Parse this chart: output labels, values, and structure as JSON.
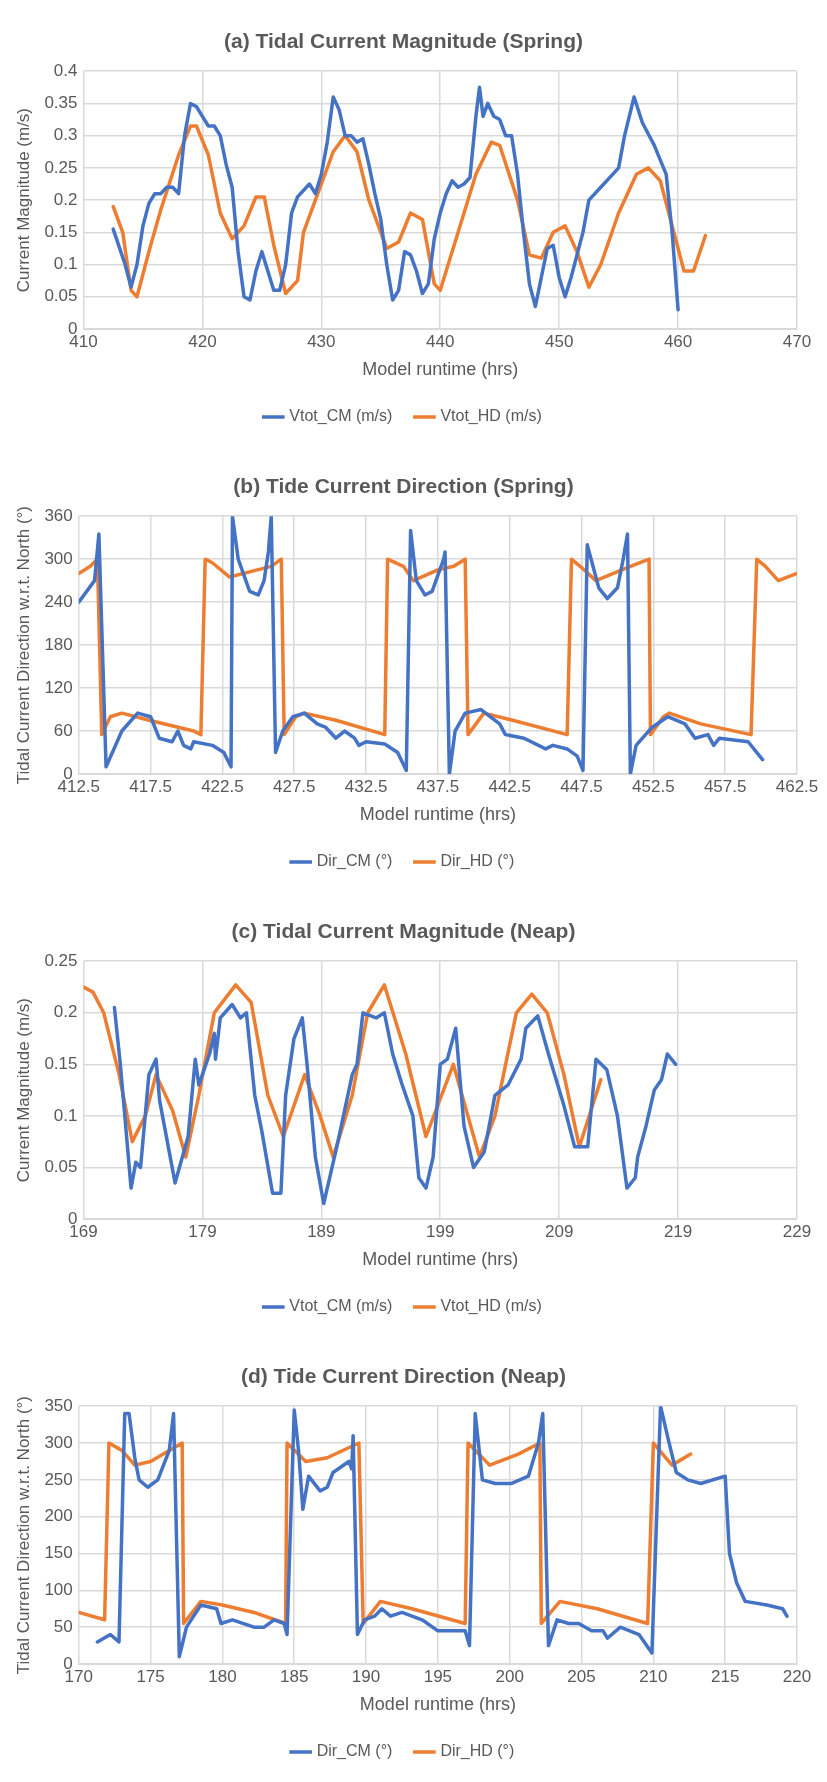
{
  "chart_data": [
    {
      "type": "line",
      "title": "(a) Tidal Current Magnitude (Spring)",
      "xlabel": "Model runtime (hrs)",
      "ylabel": "Current Magnitude (m/s)",
      "xlim": [
        410,
        470
      ],
      "xticks": [
        410,
        420,
        430,
        440,
        450,
        460,
        470
      ],
      "ylim": [
        0,
        0.4
      ],
      "yticks": [
        0,
        0.05,
        0.1,
        0.15,
        0.2,
        0.25,
        0.3,
        0.35,
        0.4
      ],
      "grid": true,
      "legend": "bottom",
      "series": [
        {
          "name": "Vtot_CM (m/s)",
          "color": "#4472c4",
          "x": [
            412.5,
            413.5,
            414,
            414.5,
            415,
            415.5,
            416,
            416.5,
            417,
            417.5,
            418,
            418.5,
            419,
            419.5,
            420,
            420.5,
            421,
            421.5,
            422,
            422.5,
            423,
            423.5,
            424,
            424.5,
            425,
            425.5,
            426,
            426.5,
            427,
            427.5,
            428,
            429,
            429.5,
            430,
            430.5,
            431,
            431.5,
            432,
            432.5,
            433,
            433.5,
            434,
            434.5,
            435,
            435.5,
            436,
            436.5,
            437,
            437.5,
            438,
            438.5,
            439,
            439.5,
            440,
            440.5,
            441,
            441.5,
            442,
            442.5,
            443,
            443.3,
            443.6,
            444,
            444.5,
            445,
            445.5,
            446,
            446.5,
            447,
            447.5,
            448,
            448.5,
            449,
            449.5,
            450,
            450.5,
            451,
            452,
            452.5,
            453.5,
            454.5,
            455,
            455.5,
            456.3,
            457,
            458,
            459,
            459.5,
            460
          ],
          "values": [
            0.155,
            0.1,
            0.065,
            0.1,
            0.16,
            0.195,
            0.21,
            0.21,
            0.22,
            0.22,
            0.21,
            0.3,
            0.35,
            0.345,
            0.33,
            0.315,
            0.315,
            0.3,
            0.255,
            0.22,
            0.12,
            0.05,
            0.045,
            0.09,
            0.12,
            0.09,
            0.06,
            0.06,
            0.1,
            0.18,
            0.205,
            0.225,
            0.21,
            0.24,
            0.29,
            0.36,
            0.34,
            0.3,
            0.3,
            0.29,
            0.295,
            0.255,
            0.21,
            0.17,
            0.1,
            0.045,
            0.06,
            0.12,
            0.115,
            0.09,
            0.055,
            0.07,
            0.14,
            0.18,
            0.21,
            0.23,
            0.22,
            0.225,
            0.235,
            0.33,
            0.375,
            0.33,
            0.35,
            0.33,
            0.325,
            0.3,
            0.3,
            0.24,
            0.15,
            0.07,
            0.035,
            0.08,
            0.125,
            0.13,
            0.08,
            0.05,
            0.08,
            0.15,
            0.2,
            0.22,
            0.24,
            0.25,
            0.3,
            0.36,
            0.32,
            0.285,
            0.24,
            0.15,
            0.03
          ]
        },
        {
          "name": "Vtot_HD (m/s)",
          "color": "#ed7d31",
          "x": [
            412.5,
            413.3,
            414,
            414.5,
            415.5,
            416.5,
            418,
            419,
            419.5,
            420.5,
            421.5,
            422.5,
            423.5,
            424.5,
            425.2,
            426,
            427,
            428,
            428.5,
            429.5,
            431,
            432,
            433,
            434,
            435.5,
            436.5,
            437.5,
            438.5,
            439.5,
            440,
            441,
            442,
            443,
            444.3,
            445,
            446.5,
            447.5,
            448.5,
            449.5,
            450.5,
            451.5,
            452.5,
            453.5,
            455,
            456.5,
            457.5,
            458.5,
            459.5,
            460.5,
            461.3,
            462.3
          ],
          "values": [
            0.19,
            0.15,
            0.06,
            0.05,
            0.12,
            0.185,
            0.27,
            0.315,
            0.315,
            0.27,
            0.18,
            0.14,
            0.16,
            0.205,
            0.205,
            0.13,
            0.055,
            0.075,
            0.15,
            0.2,
            0.275,
            0.3,
            0.275,
            0.2,
            0.125,
            0.135,
            0.18,
            0.17,
            0.07,
            0.06,
            0.12,
            0.18,
            0.24,
            0.29,
            0.285,
            0.2,
            0.115,
            0.11,
            0.15,
            0.16,
            0.12,
            0.065,
            0.1,
            0.18,
            0.24,
            0.25,
            0.23,
            0.16,
            0.09,
            0.09,
            0.145
          ]
        }
      ]
    },
    {
      "type": "line",
      "title": "(b) Tide Current Direction (Spring)",
      "xlabel": "Model runtime (hrs)",
      "ylabel": "Tidal Current Direction w.r.t. North (°)",
      "xlim": [
        412.5,
        462.5
      ],
      "xticks": [
        412.5,
        417.5,
        422.5,
        427.5,
        432.5,
        437.5,
        442.5,
        447.5,
        452.5,
        457.5,
        462.5
      ],
      "ylim": [
        0,
        360
      ],
      "yticks": [
        0,
        60,
        120,
        180,
        240,
        300,
        360
      ],
      "grid": true,
      "legend": "bottom",
      "series": [
        {
          "name": "Dir_CM (°)",
          "color": "#4472c4",
          "x": [
            412.5,
            413.6,
            413.9,
            414.4,
            415.5,
            416.6,
            417.5,
            418.1,
            419,
            419.4,
            419.8,
            420.3,
            420.5,
            421.8,
            422.6,
            423.1,
            423.2,
            423.6,
            424.4,
            425,
            425.4,
            425.7,
            425.9,
            426.2,
            426.7,
            427.4,
            428.2,
            429.1,
            429.7,
            430.4,
            431,
            431.7,
            432,
            432.5,
            433.8,
            434.7,
            435.3,
            435.6,
            436,
            436.6,
            437.1,
            437.9,
            438,
            438.3,
            438.7,
            439.4,
            440.5,
            441.8,
            442.2,
            443.5,
            445,
            445.5,
            446.5,
            447.2,
            447.6,
            447.9,
            448.7,
            449.3,
            450,
            450.4,
            450.7,
            450.9,
            451.3,
            452.4,
            453.5,
            454.7,
            455.4,
            456.3,
            456.7,
            457.1,
            459.1,
            460.1
          ],
          "values": [
            240,
            270,
            335,
            10,
            60,
            85,
            80,
            50,
            45,
            60,
            40,
            35,
            45,
            40,
            30,
            10,
            360,
            300,
            255,
            250,
            270,
            310,
            360,
            30,
            60,
            80,
            85,
            70,
            65,
            50,
            60,
            50,
            40,
            45,
            42,
            30,
            5,
            340,
            270,
            250,
            255,
            300,
            310,
            0,
            60,
            85,
            90,
            70,
            55,
            50,
            35,
            40,
            35,
            25,
            5,
            320,
            260,
            245,
            260,
            300,
            335,
            0,
            40,
            65,
            80,
            70,
            50,
            55,
            40,
            50,
            45,
            20
          ]
        },
        {
          "name": "Dir_HD (°)",
          "color": "#ed7d31",
          "x": [
            412.5,
            413.3,
            413.8,
            414.1,
            414.7,
            415.5,
            417.4,
            420.5,
            421,
            421.3,
            421.8,
            423,
            425.9,
            426.6,
            426.8,
            427.6,
            428.2,
            430.4,
            433.8,
            434,
            435.1,
            435.8,
            437.5,
            438.6,
            439.4,
            439.6,
            440.7,
            442.7,
            446.5,
            446.8,
            447.4,
            448.5,
            450.9,
            452.2,
            452.3,
            453.2,
            453.6,
            455.8,
            459.3,
            459.7,
            460.3,
            461.2,
            462.5
          ],
          "values": [
            280,
            290,
            300,
            55,
            80,
            85,
            75,
            60,
            55,
            300,
            295,
            275,
            290,
            300,
            55,
            80,
            85,
            75,
            55,
            300,
            290,
            270,
            285,
            290,
            300,
            55,
            85,
            75,
            55,
            300,
            290,
            270,
            290,
            300,
            55,
            80,
            85,
            70,
            55,
            300,
            290,
            270,
            280
          ]
        }
      ]
    },
    {
      "type": "line",
      "title": "(c) Tidal Current Magnitude (Neap)",
      "xlabel": "Model runtime (hrs)",
      "ylabel": "Current Magnitude (m/s)",
      "xlim": [
        169,
        229
      ],
      "xticks": [
        169,
        179,
        189,
        199,
        209,
        219,
        229
      ],
      "ylim": [
        0,
        0.25
      ],
      "yticks": [
        0,
        0.05,
        0.1,
        0.15,
        0.2,
        0.25
      ],
      "grid": true,
      "legend": "bottom",
      "series": [
        {
          "name": "Vtot_CM (m/s)",
          "color": "#4472c4",
          "x": [
            171.6,
            172.1,
            173,
            173.4,
            173.8,
            174.5,
            175.1,
            175.4,
            176.7,
            177.8,
            178.4,
            178.7,
            179.6,
            180,
            180.1,
            180.5,
            181.5,
            182.2,
            182.7,
            183.4,
            184,
            184.9,
            185.6,
            186,
            186.7,
            187.4,
            187.8,
            188.5,
            189.2,
            190.3,
            191.6,
            192,
            192.5,
            193.6,
            194.3,
            195,
            195.8,
            196.7,
            197.2,
            197.8,
            198.4,
            199,
            199.6,
            200.3,
            201,
            201.8,
            202.7,
            203.6,
            204.7,
            205.8,
            206.2,
            207.2,
            208.1,
            209.4,
            210.3,
            211.4,
            212.1,
            213,
            213.9,
            214.7,
            215.4,
            215.6,
            216.3,
            217,
            217.6,
            218.1,
            218.8
          ],
          "values": [
            0.205,
            0.15,
            0.03,
            0.055,
            0.05,
            0.14,
            0.155,
            0.115,
            0.035,
            0.08,
            0.155,
            0.13,
            0.16,
            0.18,
            0.155,
            0.195,
            0.208,
            0.195,
            0.2,
            0.12,
            0.085,
            0.025,
            0.025,
            0.12,
            0.175,
            0.195,
            0.15,
            0.06,
            0.015,
            0.07,
            0.14,
            0.15,
            0.2,
            0.195,
            0.2,
            0.16,
            0.13,
            0.1,
            0.04,
            0.03,
            0.06,
            0.15,
            0.155,
            0.185,
            0.09,
            0.05,
            0.065,
            0.12,
            0.13,
            0.155,
            0.185,
            0.197,
            0.16,
            0.11,
            0.07,
            0.07,
            0.155,
            0.145,
            0.1,
            0.03,
            0.04,
            0.06,
            0.09,
            0.125,
            0.135,
            0.16,
            0.15
          ]
        },
        {
          "name": "Vtot_HD (m/s)",
          "color": "#ed7d31",
          "x": [
            169,
            169.8,
            170.7,
            172,
            173.1,
            174.2,
            175.1,
            176.5,
            177.6,
            178.7,
            180,
            181.8,
            183.1,
            184.5,
            185.8,
            187.6,
            188.9,
            190,
            191.6,
            192.9,
            194.3,
            196.1,
            197.8,
            200.1,
            202.3,
            203.6,
            205.4,
            206.7,
            208,
            209.4,
            210.7,
            212.5
          ],
          "values": [
            0.225,
            0.22,
            0.2,
            0.14,
            0.075,
            0.1,
            0.14,
            0.105,
            0.06,
            0.12,
            0.2,
            0.227,
            0.21,
            0.12,
            0.08,
            0.14,
            0.1,
            0.06,
            0.12,
            0.2,
            0.227,
            0.16,
            0.08,
            0.15,
            0.06,
            0.1,
            0.2,
            0.218,
            0.2,
            0.14,
            0.07,
            0.135
          ]
        }
      ]
    },
    {
      "type": "line",
      "title": "(d) Tide Current Direction (Neap)",
      "xlabel": "Model runtime (hrs)",
      "ylabel": "Tidal Current Direction w.r.t. North (°)",
      "xlim": [
        170,
        220
      ],
      "xticks": [
        170,
        175,
        180,
        185,
        190,
        195,
        200,
        205,
        210,
        215,
        220
      ],
      "ylim": [
        0,
        350
      ],
      "yticks": [
        0,
        50,
        100,
        150,
        200,
        250,
        300,
        350
      ],
      "grid": true,
      "legend": "bottom",
      "series": [
        {
          "name": "Dir_CM (°)",
          "color": "#4472c4",
          "x": [
            171.3,
            172.2,
            172.8,
            173.2,
            173.5,
            173.9,
            174.2,
            174.8,
            175.5,
            176.3,
            176.6,
            177,
            177.5,
            178.5,
            179.6,
            179.9,
            180.7,
            182.2,
            182.9,
            183.6,
            184.3,
            184.5,
            185,
            185.3,
            185.6,
            186,
            186.8,
            187.3,
            187.7,
            188.8,
            189,
            189.1,
            189.4,
            189.9,
            190.6,
            191.1,
            191.7,
            192.5,
            193.9,
            195,
            196.1,
            196.9,
            197.2,
            197.6,
            198.1,
            199,
            200.1,
            201.3,
            202,
            202.3,
            202.7,
            203.3,
            204.1,
            204.8,
            205.7,
            206.5,
            206.8,
            207.7,
            209,
            209.9,
            210.5,
            211.1,
            211.6,
            212.4,
            213.3,
            215,
            215.3,
            215.8,
            216.4,
            217.9,
            219,
            219.3
          ],
          "values": [
            30,
            40,
            30,
            340,
            340,
            280,
            250,
            240,
            250,
            290,
            340,
            10,
            50,
            80,
            75,
            55,
            60,
            50,
            50,
            60,
            55,
            40,
            345,
            290,
            210,
            255,
            235,
            240,
            260,
            275,
            265,
            310,
            40,
            60,
            65,
            75,
            65,
            70,
            60,
            45,
            45,
            45,
            25,
            340,
            250,
            245,
            245,
            255,
            300,
            340,
            25,
            60,
            55,
            55,
            45,
            45,
            35,
            50,
            40,
            15,
            350,
            300,
            260,
            250,
            245,
            255,
            150,
            110,
            85,
            80,
            75,
            65
          ]
        },
        {
          "name": "Dir_HD (°)",
          "color": "#ed7d31",
          "x": [
            170,
            171.8,
            172.1,
            173,
            173.9,
            175,
            176.3,
            177.2,
            177.3,
            178.5,
            180,
            182.2,
            184.4,
            184.5,
            185.8,
            187.3,
            189.5,
            189.8,
            191,
            193.2,
            196.9,
            197.1,
            198.6,
            200.6,
            202.1,
            202.2,
            203.5,
            206.1,
            209.6,
            210,
            211.3,
            212.6
          ],
          "values": [
            70,
            60,
            300,
            290,
            270,
            275,
            290,
            300,
            55,
            85,
            80,
            70,
            55,
            300,
            275,
            280,
            300,
            55,
            85,
            75,
            55,
            300,
            270,
            285,
            300,
            55,
            85,
            75,
            55,
            300,
            270,
            285
          ]
        }
      ]
    }
  ]
}
